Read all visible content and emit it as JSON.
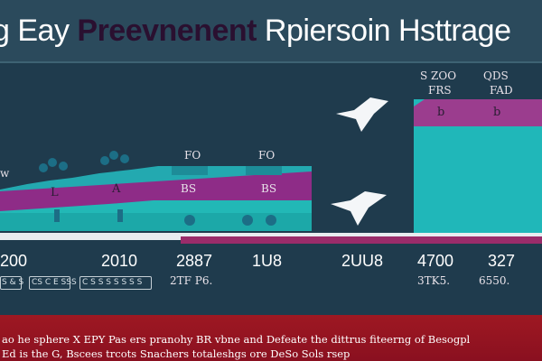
{
  "header": {
    "title_part1": "g Eay ",
    "title_part2": "Preevnenent ",
    "title_part3": "Rpiersoin Hsttrage"
  },
  "top_right_labels": [
    "S ZOO",
    "FRS",
    "QDS",
    "FAD"
  ],
  "box_labels": [
    "FO",
    "FO",
    "BS",
    "BS",
    "b",
    "b",
    "L",
    "A"
  ],
  "left_marker": "w",
  "values": [
    "200",
    "2010",
    "2887",
    "1U8",
    "2UU8",
    "4700",
    "327"
  ],
  "sub_values": [
    "2TF P6.",
    "3TK5.",
    "6550."
  ],
  "tags": [
    "S & S",
    "CS C E SSS",
    "C S S S S S S S"
  ],
  "bottom_text": {
    "line1": "ao he sphere X EPY Pas ers pranohy BR vbne and Defeate the dittrus fiteerng of Besogpl",
    "line2": "Ed is the G, Bscees trcots Snachers totaleshgs ore DeSo Sols rsep"
  }
}
